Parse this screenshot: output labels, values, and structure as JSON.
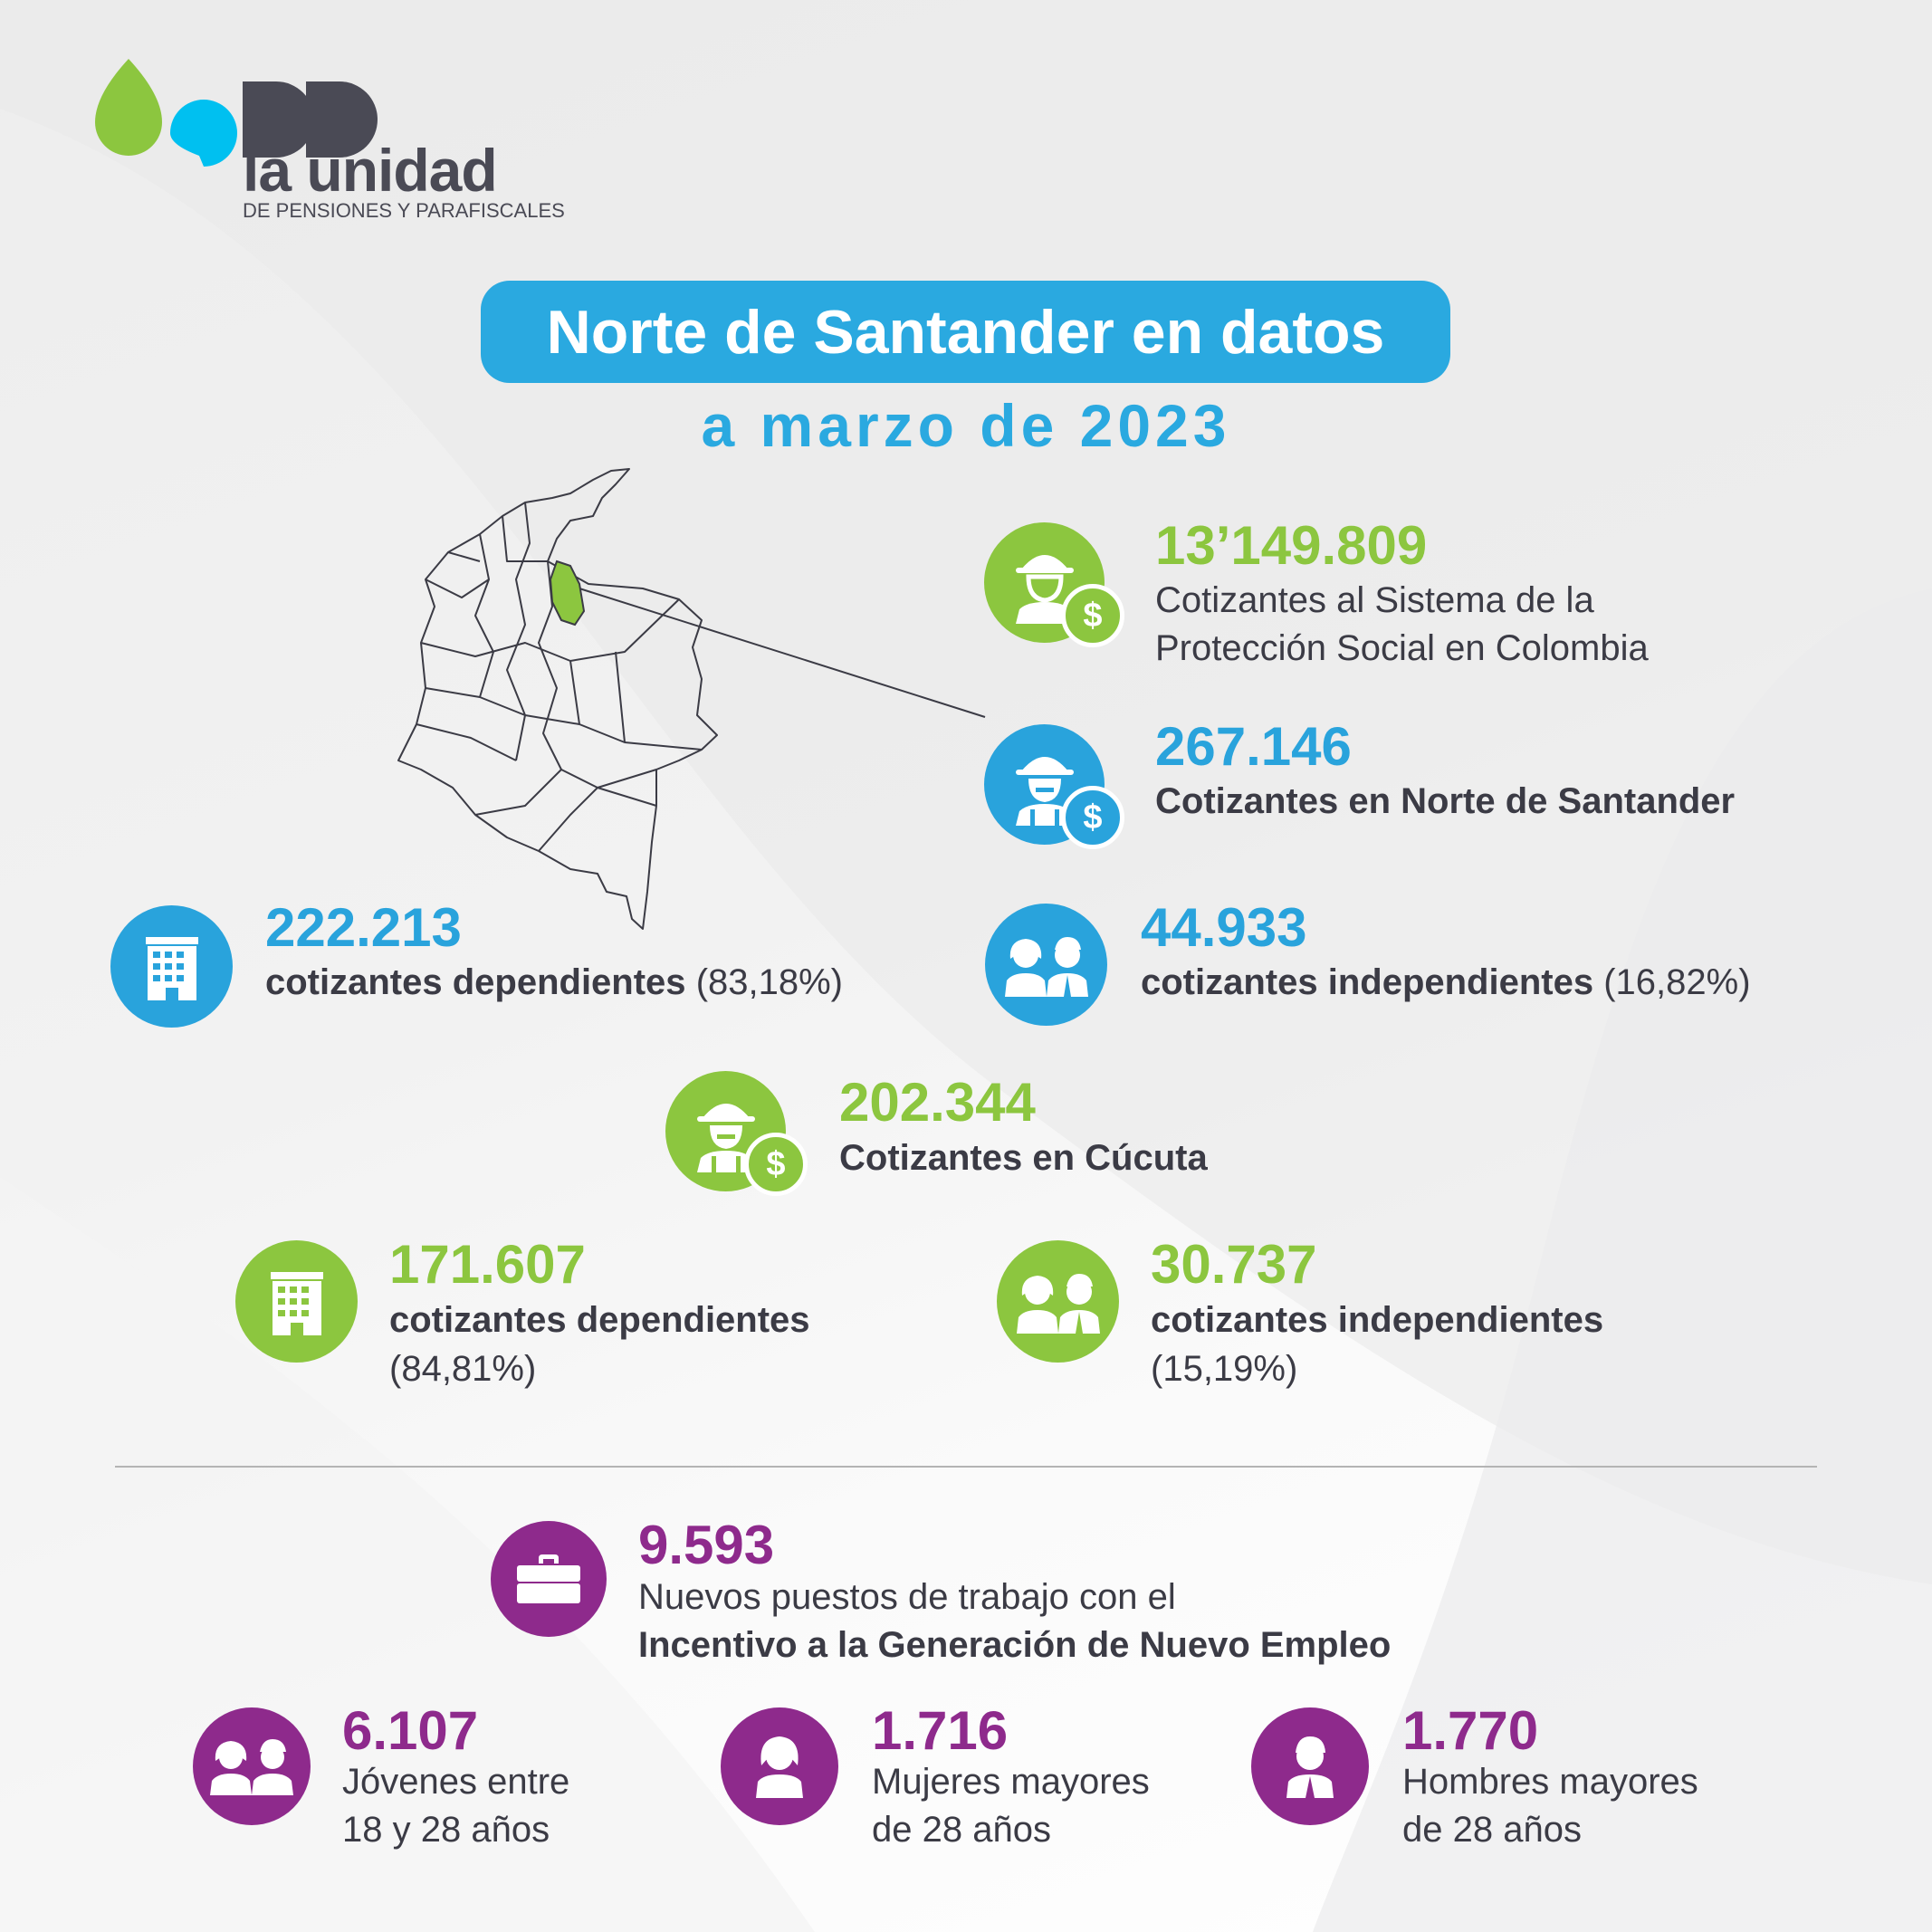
{
  "brand": {
    "name": "la unidad",
    "tagline": "DE PENSIONES Y PARAFISCALES",
    "colors": {
      "green": "#8cc63f",
      "cyan": "#00c0f0",
      "dark": "#4a4a55"
    }
  },
  "header": {
    "title": "Norte de Santander en datos",
    "subtitle": "a marzo de 2023"
  },
  "colors": {
    "blue": "#29a3dc",
    "green": "#8cc63f",
    "purple": "#8e2a8c"
  },
  "national": {
    "value": "13’149.809",
    "label_line1": "Cotizantes al Sistema de la",
    "label_line2": "Protección Social en Colombia",
    "icon": "worker-woman-dollar-icon"
  },
  "department": {
    "value": "267.146",
    "label": "Cotizantes en Norte de Santander",
    "icon": "worker-man-dollar-icon",
    "dependent": {
      "value": "222.213",
      "label": "cotizantes dependientes",
      "pct": "(83,18%)",
      "icon": "building-icon"
    },
    "independent": {
      "value": "44.933",
      "label": "cotizantes independientes",
      "pct": "(16,82%)",
      "icon": "people-icon"
    }
  },
  "cucuta": {
    "value": "202.344",
    "label": "Cotizantes en Cúcuta",
    "icon": "worker-man-dollar-icon",
    "dependent": {
      "value": "171.607",
      "label": "cotizantes dependientes",
      "pct": "(84,81%)",
      "icon": "building-icon"
    },
    "independent": {
      "value": "30.737",
      "label": "cotizantes independientes",
      "pct": "(15,19%)",
      "icon": "people-icon"
    }
  },
  "employment": {
    "value": "9.593",
    "label_line1": "Nuevos puestos de trabajo con el",
    "label_line2": "Incentivo a la Generación de Nuevo Empleo",
    "icon": "briefcase-icon",
    "groups": [
      {
        "value": "6.107",
        "line1": "Jóvenes entre",
        "line2": "18 y 28 años",
        "icon": "youth-icon"
      },
      {
        "value": "1.716",
        "line1": "Mujeres mayores",
        "line2": "de 28 años",
        "icon": "woman-icon"
      },
      {
        "value": "1.770",
        "line1": "Hombres mayores",
        "line2": "de 28 años",
        "icon": "man-icon"
      }
    ]
  }
}
